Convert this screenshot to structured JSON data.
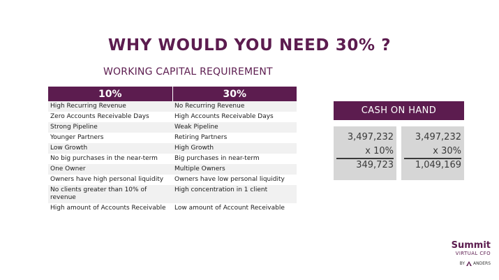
{
  "slide": {
    "title": "WHY WOULD YOU NEED 30% ?",
    "subtitle": "WORKING CAPITAL REQUIREMENT"
  },
  "comparison": {
    "headers": [
      "10%",
      "30%"
    ],
    "rows": [
      [
        "High Recurring Revenue",
        "No Recurring Revenue"
      ],
      [
        "Zero Accounts Receivable Days",
        "High Accounts Receivable Days"
      ],
      [
        "Strong Pipeline",
        "Weak Pipeline"
      ],
      [
        "Younger Partners",
        "Retiring Partners"
      ],
      [
        "Low Growth",
        "High Growth"
      ],
      [
        "No big purchases in the near-term",
        "Big purchases in near-term"
      ],
      [
        "One Owner",
        "Multiple Owners"
      ],
      [
        "Owners have high personal liquidity",
        "Owners have low personal liquidity"
      ],
      [
        "No clients greater than 10% of revenue",
        "High concentration in 1 client"
      ],
      [
        "High amount of Accounts Receivable",
        "Low amount of Account Receivable"
      ]
    ]
  },
  "cash_on_hand": {
    "label": "CASH ON HAND",
    "calculations": [
      {
        "base": "3,497,232",
        "multiplier": "x 10%",
        "result": "349,723"
      },
      {
        "base": "3,497,232",
        "multiplier": "x 30%",
        "result": "1,049,169"
      }
    ]
  },
  "logo": {
    "brand": "Summit",
    "sub": "VIRTUAL CFO",
    "by": "BY",
    "partner": "ANDERS",
    "color": "#5c1c4f"
  },
  "colors": {
    "accent": "#5c1c4f",
    "band": "#f1f1f1",
    "calc_bg": "#d6d6d6"
  }
}
